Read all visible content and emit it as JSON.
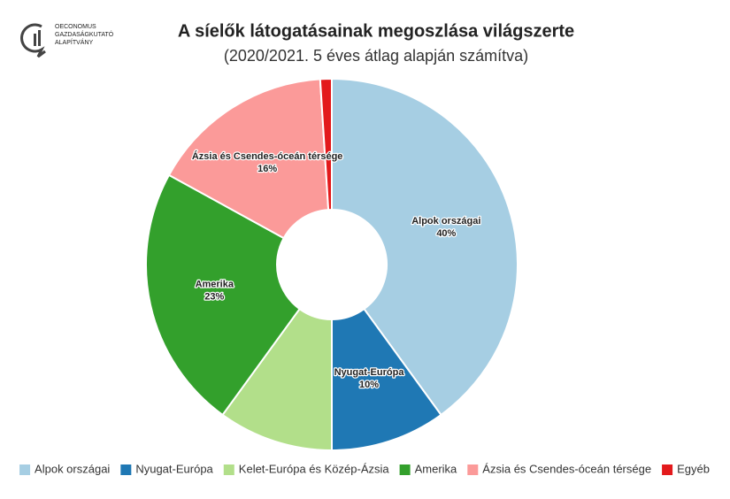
{
  "logo": [
    "OECONOMUS",
    "GAZDASÁGKUTATÓ",
    "ALAPÍTVÁNY"
  ],
  "chart_data": {
    "type": "donut",
    "title": "A síelők látogatásainak megoszlása világszerte",
    "subtitle": "(2020/2021. 5 éves átlag alapján számítva)",
    "categories": [
      "Alpok országai",
      "Nyugat-Európa",
      "Kelet-Európa és Közép-Ázsia",
      "Amerika",
      "Ázsia és Csendes-óceán térsége",
      "Egyéb"
    ],
    "values": [
      40,
      10,
      10,
      23,
      16,
      1
    ],
    "value_labels": [
      "40%",
      "10%",
      null,
      "23%",
      "16%",
      null
    ],
    "colors": [
      "#a6cee3",
      "#1f78b4",
      "#b2df8a",
      "#33a02c",
      "#fb9a99",
      "#e31a1c"
    ],
    "legend": "bottom"
  }
}
